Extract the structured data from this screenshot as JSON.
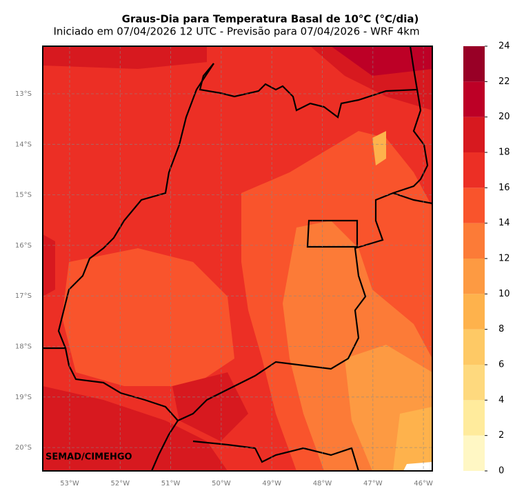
{
  "header": {
    "title": "Graus-Dia para Temperatura Basal de 10°C (°C/dia)",
    "subtitle": "Iniciado em 07/04/2026 12 UTC - Previsão para 07/04/2026 - WRF 4km"
  },
  "map": {
    "lat_labels": [
      "13°S",
      "14°S",
      "15°S",
      "16°S",
      "17°S",
      "18°S",
      "19°S",
      "20°S"
    ],
    "lon_labels": [
      "53°W",
      "52°W",
      "51°W",
      "50°W",
      "49°W",
      "48°W",
      "47°W",
      "46°W"
    ],
    "credit": "SEMAD/CIMEHGO"
  },
  "colorbar": {
    "ticks": [
      0,
      2,
      4,
      6,
      8,
      10,
      12,
      14,
      16,
      18,
      20,
      22,
      24
    ],
    "colors": [
      "#fff7c4",
      "#ffeb9c",
      "#fed97e",
      "#fec965",
      "#feb24c",
      "#fd9a42",
      "#fc7b37",
      "#f9542c",
      "#ec2f25",
      "#d7191f",
      "#bd0026",
      "#980026"
    ]
  }
}
